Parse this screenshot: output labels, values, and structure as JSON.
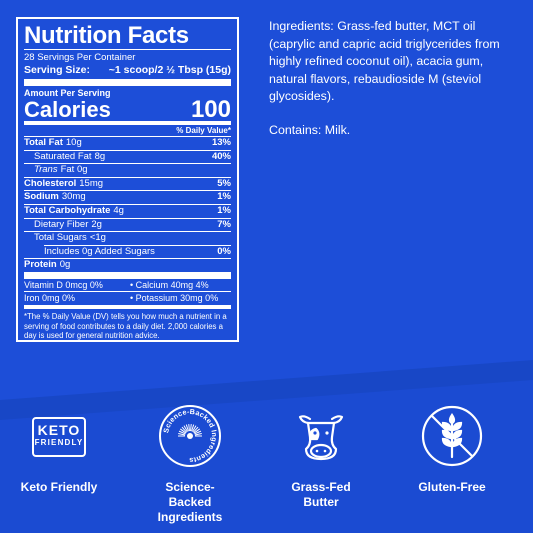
{
  "nutrition": {
    "title": "Nutrition Facts",
    "servings": "28 Servings Per Container",
    "serving_size_label": "Serving Size:",
    "serving_size_value": "~1 scoop/2 ½ Tbsp (15g)",
    "amount_per_serving": "Amount Per Serving",
    "calories_label": "Calories",
    "calories_value": "100",
    "dv_header": "% Daily Value*",
    "rows": [
      {
        "label": "Total Fat",
        "amount": "10g",
        "dv": "13%"
      },
      {
        "label": "Saturated Fat",
        "amount": "8g",
        "dv": "40%"
      },
      {
        "label": "Trans",
        "amount": "Fat 0g",
        "dv": ""
      },
      {
        "label": "Cholesterol",
        "amount": "15mg",
        "dv": "5%"
      },
      {
        "label": "Sodium",
        "amount": "30mg",
        "dv": "1%"
      },
      {
        "label": "Total Carbohydrate",
        "amount": "4g",
        "dv": "1%"
      },
      {
        "label": "Dietary Fiber",
        "amount": "2g",
        "dv": "7%"
      },
      {
        "label": "Total Sugars",
        "amount": "<1g",
        "dv": ""
      },
      {
        "label": "Includes 0g Added Sugars",
        "amount": "",
        "dv": "0%"
      },
      {
        "label": "Protein",
        "amount": "0g",
        "dv": ""
      }
    ],
    "vitamins": [
      {
        "left": "Vitamin D 0mcg 0%",
        "right": "Calcium 40mg 4%"
      },
      {
        "left": "Iron 0mg 0%",
        "right": "Potassium 30mg 0%"
      }
    ],
    "footnote": "*The % Daily Value (DV) tells you how much a nutrient in a serving of food contributes to a daily diet. 2,000 calories a day is used for general nutrition advice."
  },
  "ingredients": "Ingredients: Grass-fed butter, MCT oil (caprylic and capric acid triglycerides from highly refined coconut oil), acacia gum, natural flavors, rebaudioside M (steviol glycosides).",
  "contains": "Contains: Milk.",
  "badges": {
    "keto": {
      "line1": "KETO",
      "line2": "FRIENDLY",
      "label": "Keto Friendly"
    },
    "science": {
      "ring_text": "Science-Backed Ingredients",
      "label_1": "Science-Backed",
      "label_2": "Ingredients"
    },
    "grassfed": {
      "label_1": "Grass-Fed",
      "label_2": "Butter"
    },
    "gluten": {
      "label": "Gluten-Free"
    }
  },
  "colors": {
    "background": "#1d4ed8",
    "band": "#1847c6",
    "text": "#ffffff"
  }
}
